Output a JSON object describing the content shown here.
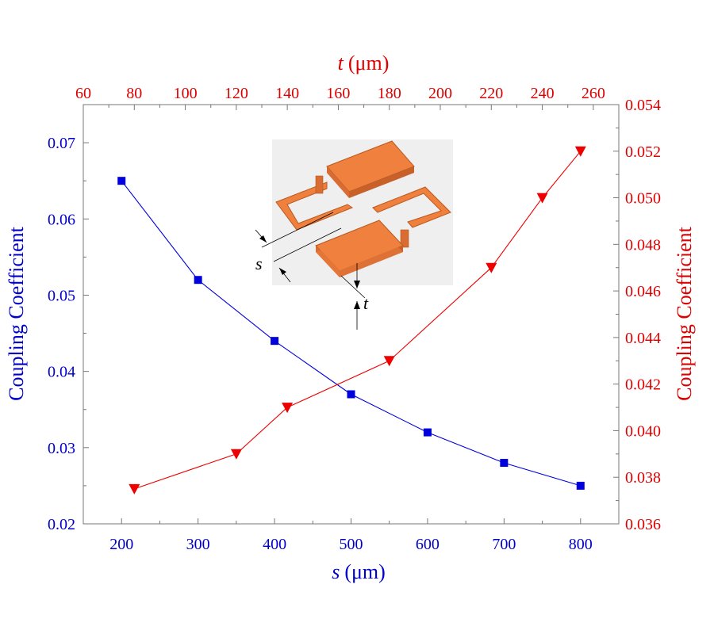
{
  "chart_data": {
    "type": "line",
    "title": "",
    "axes": {
      "bottom": {
        "var": "s",
        "unit": "(μm)",
        "range": [
          150,
          850
        ],
        "ticks": [
          200,
          300,
          400,
          500,
          600,
          700,
          800
        ],
        "color": "#0000cc"
      },
      "top": {
        "var": "t",
        "unit": "(μm)",
        "range": [
          60,
          270
        ],
        "ticks": [
          60,
          80,
          100,
          120,
          140,
          160,
          180,
          200,
          220,
          240,
          260
        ],
        "color": "#dd0000"
      },
      "left": {
        "label": "Coupling Coefficient",
        "range": [
          0.02,
          0.075
        ],
        "ticks": [
          0.02,
          0.03,
          0.04,
          0.05,
          0.06,
          0.07
        ],
        "tick_labels": [
          "0.02",
          "0.03",
          "0.04",
          "0.05",
          "0.06",
          "0.07"
        ],
        "color": "#0000cc"
      },
      "right": {
        "label": "Coupling Coefficient",
        "range": [
          0.036,
          0.054
        ],
        "ticks": [
          0.036,
          0.038,
          0.04,
          0.042,
          0.044,
          0.046,
          0.048,
          0.05,
          0.052,
          0.054
        ],
        "tick_labels": [
          "0.036",
          "0.038",
          "0.040",
          "0.042",
          "0.044",
          "0.046",
          "0.048",
          "0.050",
          "0.052",
          "0.054"
        ],
        "color": "#dd0000"
      }
    },
    "series": [
      {
        "axes": [
          "bottom",
          "left"
        ],
        "marker": "square",
        "color": "#0000dd",
        "x": [
          200,
          300,
          400,
          500,
          600,
          700,
          800
        ],
        "y": [
          0.065,
          0.052,
          0.044,
          0.037,
          0.032,
          0.028,
          0.025
        ]
      },
      {
        "axes": [
          "top",
          "right"
        ],
        "marker": "triangle-down",
        "color": "#ee0000",
        "x": [
          80,
          120,
          140,
          180,
          220,
          240,
          255
        ],
        "y": [
          0.0375,
          0.039,
          0.041,
          0.043,
          0.047,
          0.05,
          0.052
        ]
      }
    ],
    "inset": {
      "s_label": "s",
      "t_label": "t"
    }
  }
}
